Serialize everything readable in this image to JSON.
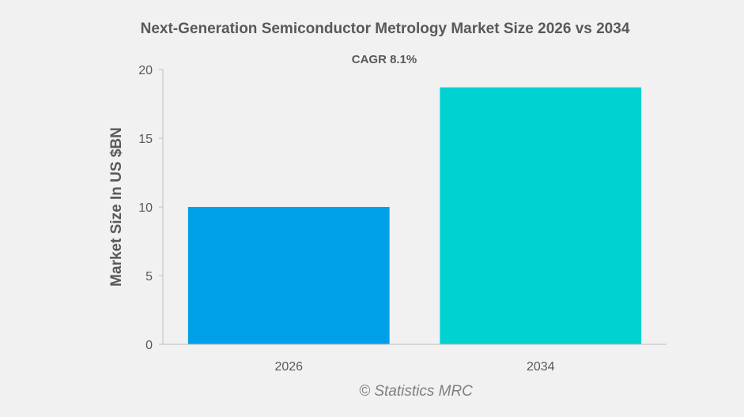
{
  "chart_data": {
    "type": "bar",
    "title": "Next-Generation Semiconductor Metrology Market Size 2026 vs 2034",
    "subtitle": "CAGR 8.1%",
    "categories": [
      "2026",
      "2034"
    ],
    "values": [
      10.0,
      18.7
    ],
    "colors": [
      "#00a0e9",
      "#00d2d2"
    ],
    "xlabel": "",
    "ylabel": "Market Size In US $BN",
    "ylim": [
      0,
      20
    ],
    "yticks": [
      0,
      5,
      10,
      15,
      20
    ],
    "grid": false,
    "legend": "none"
  },
  "watermark": "© Statistics MRC"
}
